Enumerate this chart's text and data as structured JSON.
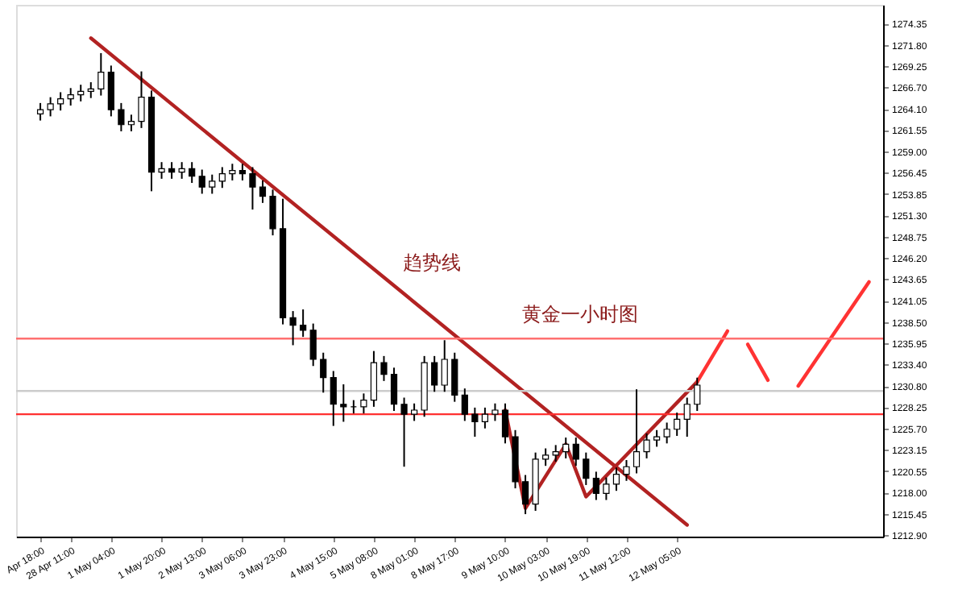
{
  "chart_data": {
    "type": "candlestick",
    "categories": [
      "Apr 18:00",
      null,
      null,
      "28 Apr 11:00",
      null,
      null,
      null,
      "1 May 04:00",
      null,
      null,
      null,
      null,
      "1 May 20:00",
      null,
      null,
      null,
      "2 May 13:00",
      null,
      null,
      null,
      "3 May 06:00",
      null,
      null,
      null,
      "3 May 23:00",
      null,
      null,
      null,
      null,
      "4 May 15:00",
      null,
      null,
      null,
      "5 May 08:00",
      null,
      null,
      null,
      "8 May 01:00",
      null,
      null,
      null,
      "8 May 17:00",
      null,
      null,
      null,
      null,
      "9 May 10:00",
      null,
      null,
      null,
      "10 May 03:00",
      null,
      null,
      null,
      "10 May 19:00",
      null,
      null,
      null,
      "11 May 12:00",
      null,
      null,
      null,
      null,
      "12 May 05:00",
      null,
      null,
      null,
      null,
      null,
      null,
      null,
      null,
      null,
      null,
      null,
      null,
      null,
      null,
      null,
      null,
      null,
      null,
      null
    ],
    "ohlc": [
      [
        1263.5,
        1264.8,
        1262.7,
        1264.0
      ],
      [
        1264.0,
        1265.5,
        1263.2,
        1264.7
      ],
      [
        1264.7,
        1266.1,
        1263.9,
        1265.3
      ],
      [
        1265.3,
        1266.6,
        1264.5,
        1265.8
      ],
      [
        1265.8,
        1267.0,
        1265.0,
        1266.2
      ],
      [
        1266.2,
        1267.3,
        1265.4,
        1266.5
      ],
      [
        1266.5,
        1270.8,
        1265.7,
        1268.5
      ],
      [
        1268.5,
        1269.3,
        1263.2,
        1264.0
      ],
      [
        1264.0,
        1264.8,
        1261.4,
        1262.2
      ],
      [
        1262.2,
        1263.4,
        1261.4,
        1262.6
      ],
      [
        1262.6,
        1268.6,
        1261.8,
        1265.5
      ],
      [
        1265.5,
        1266.3,
        1254.2,
        1256.5
      ],
      [
        1256.5,
        1257.7,
        1255.7,
        1256.9
      ],
      [
        1256.9,
        1257.7,
        1255.7,
        1256.5
      ],
      [
        1256.5,
        1257.7,
        1255.7,
        1256.9
      ],
      [
        1256.9,
        1257.7,
        1255.2,
        1256.0
      ],
      [
        1256.0,
        1256.8,
        1253.9,
        1254.7
      ],
      [
        1254.7,
        1256.2,
        1253.9,
        1255.4
      ],
      [
        1255.4,
        1257.1,
        1254.6,
        1256.3
      ],
      [
        1256.3,
        1257.5,
        1255.5,
        1256.7
      ],
      [
        1256.7,
        1257.5,
        1255.5,
        1256.3
      ],
      [
        1256.3,
        1257.1,
        1252.0,
        1254.7
      ],
      [
        1254.7,
        1255.5,
        1252.8,
        1253.6
      ],
      [
        1253.6,
        1254.4,
        1248.9,
        1249.7
      ],
      [
        1249.7,
        1253.3,
        1238.2,
        1239.0
      ],
      [
        1239.0,
        1239.8,
        1235.7,
        1238.1
      ],
      [
        1238.1,
        1240.0,
        1236.7,
        1237.5
      ],
      [
        1237.5,
        1238.3,
        1233.2,
        1234.0
      ],
      [
        1234.0,
        1234.8,
        1230.0,
        1231.8
      ],
      [
        1231.8,
        1232.6,
        1226.0,
        1228.6
      ],
      [
        1228.6,
        1231.0,
        1226.5,
        1228.3
      ],
      [
        1228.3,
        1229.1,
        1227.5,
        1228.3
      ],
      [
        1228.3,
        1229.9,
        1227.5,
        1229.1
      ],
      [
        1229.1,
        1235.0,
        1228.3,
        1233.6
      ],
      [
        1233.6,
        1234.4,
        1231.4,
        1232.2
      ],
      [
        1232.2,
        1233.0,
        1227.8,
        1228.6
      ],
      [
        1228.6,
        1229.4,
        1221.1,
        1227.4
      ],
      [
        1227.4,
        1228.7,
        1226.6,
        1227.9
      ],
      [
        1227.9,
        1234.4,
        1227.1,
        1233.6
      ],
      [
        1233.6,
        1234.4,
        1230.1,
        1230.9
      ],
      [
        1230.9,
        1236.3,
        1230.1,
        1234.0
      ],
      [
        1234.0,
        1234.8,
        1228.9,
        1229.7
      ],
      [
        1229.7,
        1230.5,
        1226.6,
        1227.4
      ],
      [
        1227.4,
        1228.2,
        1224.7,
        1226.5
      ],
      [
        1226.5,
        1228.2,
        1225.7,
        1227.4
      ],
      [
        1227.4,
        1228.7,
        1226.6,
        1227.9
      ],
      [
        1227.9,
        1228.7,
        1223.9,
        1224.7
      ],
      [
        1224.7,
        1225.5,
        1218.5,
        1219.3
      ],
      [
        1219.3,
        1220.1,
        1215.4,
        1216.6
      ],
      [
        1216.6,
        1222.8,
        1215.8,
        1222.0
      ],
      [
        1222.0,
        1223.3,
        1221.2,
        1222.5
      ],
      [
        1222.5,
        1223.7,
        1221.7,
        1222.9
      ],
      [
        1222.9,
        1224.6,
        1222.1,
        1223.8
      ],
      [
        1223.8,
        1224.6,
        1221.2,
        1222.0
      ],
      [
        1222.0,
        1222.8,
        1218.9,
        1219.7
      ],
      [
        1219.7,
        1220.5,
        1217.1,
        1217.9
      ],
      [
        1217.9,
        1219.8,
        1217.1,
        1219.0
      ],
      [
        1219.0,
        1221.0,
        1218.2,
        1220.2
      ],
      [
        1220.2,
        1221.9,
        1219.4,
        1221.1
      ],
      [
        1221.1,
        1230.4,
        1220.3,
        1222.9
      ],
      [
        1222.9,
        1225.1,
        1222.1,
        1224.3
      ],
      [
        1224.3,
        1225.5,
        1223.5,
        1224.7
      ],
      [
        1224.7,
        1226.4,
        1223.9,
        1225.6
      ],
      [
        1225.6,
        1227.6,
        1224.8,
        1226.8
      ],
      [
        1226.8,
        1229.4,
        1224.7,
        1228.6
      ],
      [
        1228.6,
        1231.8,
        1227.8,
        1230.9
      ],
      null,
      null,
      null,
      null,
      null,
      null,
      null,
      null,
      null,
      null,
      null,
      null,
      null,
      null,
      null,
      null,
      null
    ],
    "series": [
      {
        "type": "line",
        "color": "#b22222",
        "values": [
          null,
          null,
          null,
          null,
          null,
          1272.6,
          null,
          null,
          null,
          null,
          null,
          null,
          null,
          null,
          null,
          null,
          null,
          null,
          null,
          null,
          null,
          null,
          null,
          null,
          null,
          null,
          null,
          null,
          null,
          null,
          null,
          null,
          null,
          null,
          null,
          null,
          null,
          null,
          null,
          null,
          null,
          null,
          null,
          null,
          null,
          null,
          null,
          null,
          null,
          null,
          null,
          null,
          null,
          null,
          null,
          null,
          null,
          null,
          null,
          null,
          null,
          null,
          null,
          null,
          1214.1,
          null,
          null,
          null,
          null,
          null,
          null,
          null,
          null,
          null,
          null,
          null,
          null,
          null,
          null,
          null,
          null,
          null,
          null
        ]
      },
      {
        "type": "line",
        "color": "#b22222",
        "values": [
          null,
          null,
          null,
          null,
          null,
          null,
          null,
          null,
          null,
          null,
          null,
          null,
          null,
          null,
          null,
          null,
          null,
          null,
          null,
          null,
          null,
          null,
          null,
          null,
          null,
          null,
          null,
          null,
          null,
          null,
          null,
          null,
          null,
          null,
          null,
          null,
          null,
          null,
          null,
          null,
          null,
          null,
          null,
          null,
          null,
          null,
          1227.9,
          null,
          1216.1,
          null,
          null,
          null,
          1223.8,
          null,
          1217.5,
          null,
          null,
          null,
          null,
          null,
          null,
          null,
          null,
          null,
          null,
          1231.3,
          null,
          null,
          null,
          null,
          null,
          null,
          null,
          null,
          null,
          null,
          null,
          null,
          null,
          null,
          null,
          null,
          null
        ]
      },
      {
        "type": "line",
        "color": "#ff3333",
        "values": [
          null,
          null,
          null,
          null,
          null,
          null,
          null,
          null,
          null,
          null,
          null,
          null,
          null,
          null,
          null,
          null,
          null,
          null,
          null,
          null,
          null,
          null,
          null,
          null,
          null,
          null,
          null,
          null,
          null,
          null,
          null,
          null,
          null,
          null,
          null,
          null,
          null,
          null,
          null,
          null,
          null,
          null,
          null,
          null,
          null,
          null,
          null,
          null,
          null,
          null,
          null,
          null,
          null,
          null,
          null,
          null,
          null,
          null,
          null,
          null,
          null,
          null,
          null,
          null,
          null,
          1231.3,
          null,
          null,
          1237.4,
          null,
          null,
          null,
          null,
          null,
          null,
          null,
          null,
          null,
          null,
          null,
          null,
          null,
          null
        ]
      },
      {
        "type": "line",
        "color": "#ff3333",
        "values": [
          null,
          null,
          null,
          null,
          null,
          null,
          null,
          null,
          null,
          null,
          null,
          null,
          null,
          null,
          null,
          null,
          null,
          null,
          null,
          null,
          null,
          null,
          null,
          null,
          null,
          null,
          null,
          null,
          null,
          null,
          null,
          null,
          null,
          null,
          null,
          null,
          null,
          null,
          null,
          null,
          null,
          null,
          null,
          null,
          null,
          null,
          null,
          null,
          null,
          null,
          null,
          null,
          null,
          null,
          null,
          null,
          null,
          null,
          null,
          null,
          null,
          null,
          null,
          null,
          null,
          null,
          null,
          null,
          null,
          null,
          1235.8,
          null,
          1231.5,
          null,
          null,
          null,
          null,
          null,
          null,
          null,
          null,
          null,
          null
        ]
      },
      {
        "type": "line",
        "color": "#ff3333",
        "values": [
          null,
          null,
          null,
          null,
          null,
          null,
          null,
          null,
          null,
          null,
          null,
          null,
          null,
          null,
          null,
          null,
          null,
          null,
          null,
          null,
          null,
          null,
          null,
          null,
          null,
          null,
          null,
          null,
          null,
          null,
          null,
          null,
          null,
          null,
          null,
          null,
          null,
          null,
          null,
          null,
          null,
          null,
          null,
          null,
          null,
          null,
          null,
          null,
          null,
          null,
          null,
          null,
          null,
          null,
          null,
          null,
          null,
          null,
          null,
          null,
          null,
          null,
          null,
          null,
          null,
          null,
          null,
          null,
          null,
          null,
          null,
          null,
          null,
          null,
          null,
          1230.8,
          null,
          null,
          null,
          null,
          null,
          null,
          1243.3
        ]
      }
    ],
    "ref_lines": [
      {
        "axis": "y",
        "value": 1236.5,
        "color": "#ff7070"
      },
      {
        "axis": "y",
        "value": 1230.2,
        "color": "#cccccc"
      },
      {
        "axis": "y",
        "value": 1227.4,
        "color": "#ff3030"
      }
    ],
    "annotations": [
      "趋势线",
      "黄金一小时图"
    ],
    "ylim": [
      1212.7,
      1276.6
    ],
    "yticks": [
      1274.35,
      {
        "value": 1271.8,
        "label": "1271.80"
      },
      1269.25,
      {
        "value": 1266.7,
        "label": "1266.70"
      },
      {
        "value": 1264.1,
        "label": "1264.10"
      },
      1261.55,
      {
        "value": 1259,
        "label": "1259.00"
      },
      1256.45,
      1253.85,
      {
        "value": 1251.3,
        "label": "1251.30"
      },
      1248.75,
      {
        "value": 1246.2,
        "label": "1246.20"
      },
      1243.65,
      1241.05,
      {
        "value": 1238.5,
        "label": "1238.50"
      },
      1235.95,
      {
        "value": 1233.4,
        "label": "1233.40"
      },
      {
        "value": 1230.8,
        "label": "1230.80"
      },
      1228.25,
      {
        "value": 1225.7,
        "label": "1225.70"
      },
      1223.15,
      1220.55,
      {
        "value": 1218,
        "label": "1218.00"
      },
      1215.45,
      {
        "value": 1212.9,
        "label": "1212.90"
      }
    ]
  }
}
